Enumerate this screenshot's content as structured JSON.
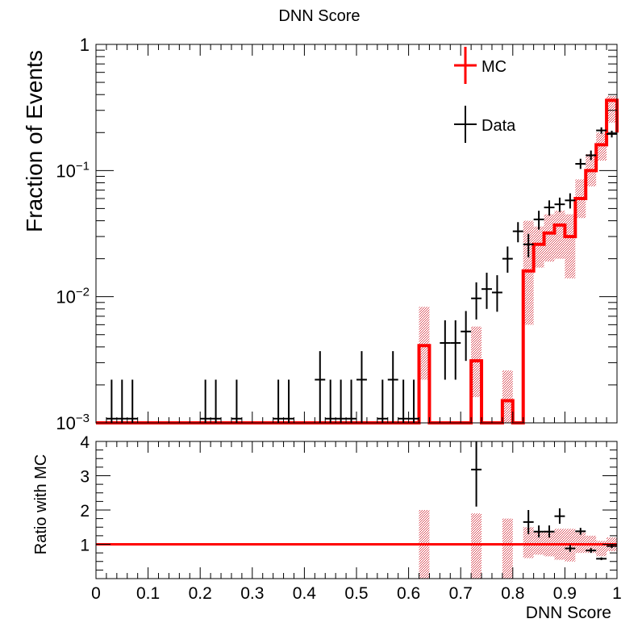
{
  "chart_data": [
    {
      "type": "histogram",
      "title": "DNN Score",
      "xlabel": "",
      "ylabel": "Fraction of Events",
      "xlim": [
        0,
        1
      ],
      "ylim": [
        0.001,
        1
      ],
      "yscale": "log",
      "bin_width": 0.02,
      "x_ticks": [
        0,
        0.1,
        0.2,
        0.3,
        0.4,
        0.5,
        0.6,
        0.7,
        0.8,
        0.9,
        1
      ],
      "y_ticks": [
        {
          "value": 0.001,
          "label_base": "10",
          "label_exp": "−3"
        },
        {
          "value": 0.01,
          "label_base": "10",
          "label_exp": "−2"
        },
        {
          "value": 0.1,
          "label_base": "10",
          "label_exp": "−1"
        },
        {
          "value": 1,
          "label_base": "1",
          "label_exp": ""
        }
      ],
      "legend": {
        "placement": "top-right",
        "entries": [
          {
            "label": "MC",
            "color": "#ff0000"
          },
          {
            "label": "Data",
            "color": "#000000"
          }
        ]
      },
      "series": [
        {
          "name": "MC",
          "style": "step",
          "color": "#ff0000",
          "band_color": "#d94a55",
          "bin_edges": [
            0,
            0.62,
            0.64,
            0.72,
            0.74,
            0.78,
            0.8,
            0.82,
            0.84,
            0.86,
            0.88,
            0.9,
            0.92,
            0.94,
            0.96,
            0.98,
            1.0
          ],
          "values": [
            0.001,
            0.0041,
            0.001,
            0.0031,
            0.001,
            0.0015,
            0.001,
            0.016,
            0.026,
            0.032,
            0.037,
            0.03,
            0.06,
            0.1,
            0.16,
            0.36,
            0.2
          ],
          "band_low": [
            null,
            0.0022,
            null,
            0.0016,
            null,
            0.00085,
            null,
            0.006,
            0.017,
            0.019,
            0.02,
            0.014,
            0.042,
            0.075,
            0.12,
            0.24,
            0.16
          ],
          "band_high": [
            null,
            0.0083,
            null,
            0.0058,
            null,
            0.0026,
            null,
            0.04,
            0.036,
            0.045,
            0.048,
            0.045,
            0.085,
            0.135,
            0.2,
            0.39,
            0.24
          ]
        },
        {
          "name": "Data",
          "style": "errorbar",
          "color": "#000000",
          "points": [
            {
              "x": 0.03,
              "y": 0.00108,
              "yerr_low": 0.001,
              "yerr_high": 0.0022
            },
            {
              "x": 0.05,
              "y": 0.00108,
              "yerr_low": 0.001,
              "yerr_high": 0.0022
            },
            {
              "x": 0.07,
              "y": 0.00108,
              "yerr_low": 0.001,
              "yerr_high": 0.0022
            },
            {
              "x": 0.21,
              "y": 0.00108,
              "yerr_low": 0.001,
              "yerr_high": 0.0022
            },
            {
              "x": 0.23,
              "y": 0.00108,
              "yerr_low": 0.001,
              "yerr_high": 0.0022
            },
            {
              "x": 0.27,
              "y": 0.00108,
              "yerr_low": 0.001,
              "yerr_high": 0.0022
            },
            {
              "x": 0.35,
              "y": 0.00108,
              "yerr_low": 0.001,
              "yerr_high": 0.0022
            },
            {
              "x": 0.37,
              "y": 0.00108,
              "yerr_low": 0.001,
              "yerr_high": 0.0022
            },
            {
              "x": 0.43,
              "y": 0.0022,
              "yerr_low": 0.001,
              "yerr_high": 0.0037
            },
            {
              "x": 0.45,
              "y": 0.00108,
              "yerr_low": 0.001,
              "yerr_high": 0.0022
            },
            {
              "x": 0.47,
              "y": 0.00108,
              "yerr_low": 0.001,
              "yerr_high": 0.0022
            },
            {
              "x": 0.49,
              "y": 0.00108,
              "yerr_low": 0.001,
              "yerr_high": 0.0022
            },
            {
              "x": 0.51,
              "y": 0.0022,
              "yerr_low": 0.001,
              "yerr_high": 0.0037
            },
            {
              "x": 0.55,
              "y": 0.00108,
              "yerr_low": 0.001,
              "yerr_high": 0.0022
            },
            {
              "x": 0.57,
              "y": 0.0022,
              "yerr_low": 0.001,
              "yerr_high": 0.0037
            },
            {
              "x": 0.59,
              "y": 0.00108,
              "yerr_low": 0.001,
              "yerr_high": 0.0022
            },
            {
              "x": 0.61,
              "y": 0.00108,
              "yerr_low": 0.001,
              "yerr_high": 0.0022
            },
            {
              "x": 0.67,
              "y": 0.0043,
              "yerr_low": 0.0022,
              "yerr_high": 0.0065
            },
            {
              "x": 0.69,
              "y": 0.0043,
              "yerr_low": 0.0022,
              "yerr_high": 0.0065
            },
            {
              "x": 0.71,
              "y": 0.0053,
              "yerr_low": 0.0031,
              "yerr_high": 0.0077
            },
            {
              "x": 0.73,
              "y": 0.0097,
              "yerr_low": 0.0066,
              "yerr_high": 0.013
            },
            {
              "x": 0.75,
              "y": 0.0115,
              "yerr_low": 0.008,
              "yerr_high": 0.0155
            },
            {
              "x": 0.77,
              "y": 0.0108,
              "yerr_low": 0.0076,
              "yerr_high": 0.0148
            },
            {
              "x": 0.79,
              "y": 0.02,
              "yerr_low": 0.0155,
              "yerr_high": 0.025
            },
            {
              "x": 0.81,
              "y": 0.033,
              "yerr_low": 0.027,
              "yerr_high": 0.039
            },
            {
              "x": 0.83,
              "y": 0.026,
              "yerr_low": 0.0205,
              "yerr_high": 0.0315
            },
            {
              "x": 0.85,
              "y": 0.041,
              "yerr_low": 0.034,
              "yerr_high": 0.048
            },
            {
              "x": 0.87,
              "y": 0.051,
              "yerr_low": 0.044,
              "yerr_high": 0.058
            },
            {
              "x": 0.89,
              "y": 0.054,
              "yerr_low": 0.047,
              "yerr_high": 0.061
            },
            {
              "x": 0.91,
              "y": 0.058,
              "yerr_low": 0.05,
              "yerr_high": 0.066
            },
            {
              "x": 0.93,
              "y": 0.113,
              "yerr_low": 0.103,
              "yerr_high": 0.124
            },
            {
              "x": 0.95,
              "y": 0.132,
              "yerr_low": 0.121,
              "yerr_high": 0.144
            },
            {
              "x": 0.97,
              "y": 0.208,
              "yerr_low": 0.196,
              "yerr_high": 0.22
            },
            {
              "x": 0.99,
              "y": 0.195,
              "yerr_low": 0.183,
              "yerr_high": 0.207
            }
          ]
        }
      ]
    },
    {
      "type": "scatter",
      "title": "",
      "xlabel": "DNN Score",
      "ylabel": "Ratio with MC",
      "xlim": [
        0,
        1
      ],
      "ylim": [
        0,
        4
      ],
      "x_ticks": [
        0,
        0.1,
        0.2,
        0.3,
        0.4,
        0.5,
        0.6,
        0.7,
        0.8,
        0.9,
        1
      ],
      "x_tick_labels": [
        "0",
        "0.1",
        "0.2",
        "0.3",
        "0.4",
        "0.5",
        "0.6",
        "0.7",
        "0.8",
        "0.9",
        "1"
      ],
      "y_ticks": [
        1,
        2,
        3,
        4
      ],
      "y_tick_labels": [
        "1",
        "2",
        "3",
        "4"
      ],
      "reference_line": {
        "y": 1,
        "color": "#ff0000"
      },
      "band": [
        {
          "x0": 0.62,
          "x1": 0.64,
          "low": 0,
          "high": 2
        },
        {
          "x0": 0.72,
          "x1": 0.74,
          "low": 0,
          "high": 1.9
        },
        {
          "x0": 0.78,
          "x1": 0.8,
          "low": 0,
          "high": 1.75
        },
        {
          "x0": 0.82,
          "x1": 0.84,
          "low": 0.6,
          "high": 1.5
        },
        {
          "x0": 0.84,
          "x1": 0.86,
          "low": 0.7,
          "high": 1.35
        },
        {
          "x0": 0.86,
          "x1": 0.88,
          "low": 0.65,
          "high": 1.4
        },
        {
          "x0": 0.88,
          "x1": 0.9,
          "low": 0.55,
          "high": 1.45
        },
        {
          "x0": 0.9,
          "x1": 0.92,
          "low": 0.5,
          "high": 1.45
        },
        {
          "x0": 0.92,
          "x1": 0.94,
          "low": 0.75,
          "high": 1.35
        },
        {
          "x0": 0.94,
          "x1": 0.96,
          "low": 0.75,
          "high": 1.25
        },
        {
          "x0": 0.96,
          "x1": 0.98,
          "low": 0.65,
          "high": 1.1
        },
        {
          "x0": 0.98,
          "x1": 1.0,
          "low": 0.8,
          "high": 1.2
        }
      ],
      "series": [
        {
          "name": "Data/MC",
          "color": "#000000",
          "points": [
            {
              "x": 0.73,
              "y": 3.18,
              "yerr_low": 2.1,
              "yerr_high": 4.0
            },
            {
              "x": 0.83,
              "y": 1.65,
              "yerr_low": 1.3,
              "yerr_high": 2.0
            },
            {
              "x": 0.85,
              "y": 1.37,
              "yerr_low": 1.2,
              "yerr_high": 1.55
            },
            {
              "x": 0.87,
              "y": 1.37,
              "yerr_low": 1.2,
              "yerr_high": 1.55
            },
            {
              "x": 0.89,
              "y": 1.82,
              "yerr_low": 1.6,
              "yerr_high": 2.05
            },
            {
              "x": 0.91,
              "y": 0.88,
              "yerr_low": 0.78,
              "yerr_high": 0.98
            },
            {
              "x": 0.93,
              "y": 1.38,
              "yerr_low": 1.28,
              "yerr_high": 1.48
            },
            {
              "x": 0.95,
              "y": 0.82,
              "yerr_low": 0.75,
              "yerr_high": 0.89
            },
            {
              "x": 0.97,
              "y": 0.58,
              "yerr_low": 0.54,
              "yerr_high": 0.62
            },
            {
              "x": 0.99,
              "y": 0.95,
              "yerr_low": 0.89,
              "yerr_high": 1.01
            }
          ]
        }
      ]
    }
  ]
}
